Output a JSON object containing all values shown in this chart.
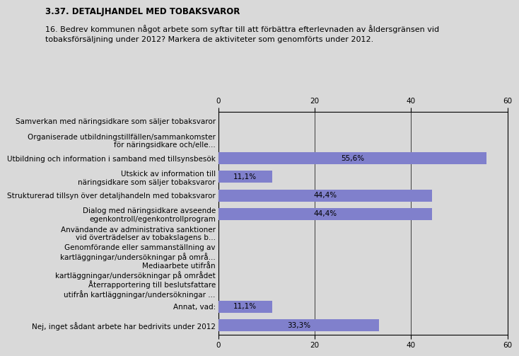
{
  "title": "3.37. DETALJHANDEL MED TOBAKSVAROR",
  "subtitle": "16. Bedrev kommunen något arbete som syftar till att förbättra efterlevnaden av åldersgränsen vid\ntobaksförsäljning under 2012? Markera de aktiviteter som genomförts under 2012.",
  "categories": [
    "Samverkan med näringsidkare som säljer tobaksvaror",
    "Organiserade utbildningstillfällen/sammankomster\nför näringsidkare och/elle...",
    "Utbildning och information i samband med tillsynsbesök",
    "Utskick av information till\nnäringsidkare som säljer tobaksvaror",
    "Strukturerad tillsyn över detaljhandeln med tobaksvaror",
    "Dialog med näringsidkare avseende\negenkontroll/egenkontrollprogram",
    "Användande av administrativa sanktioner\nvid överträdelser av tobakslagens b...",
    "Genomförande eller sammanställning av\nkartläggningar/undersökningar på områ...",
    "Mediaarbete utifrån\nkartläggningar/undersökningar på området",
    "Återrapportering till beslutsfattare\nutifrån kartläggningar/undersökningar ...",
    "Annat, vad:",
    "Nej, inget sådant arbete har bedrivits under 2012"
  ],
  "values": [
    0,
    0,
    55.6,
    11.1,
    44.4,
    44.4,
    0,
    0,
    0,
    0,
    11.1,
    33.3
  ],
  "labels": [
    "",
    "",
    "55,6%",
    "11,1%",
    "44,4%",
    "44,4%",
    "",
    "",
    "",
    "",
    "11,1%",
    "33,3%"
  ],
  "bar_color": "#8080cc",
  "background_color": "#d9d9d9",
  "plot_bg_color": "#d9d9d9",
  "xlim": [
    0,
    60
  ],
  "xticks": [
    0,
    20,
    40,
    60
  ],
  "title_fontsize": 8.5,
  "subtitle_fontsize": 8.0,
  "label_fontsize": 7.5,
  "tick_fontsize": 7.5,
  "bar_label_fontsize": 7.5
}
